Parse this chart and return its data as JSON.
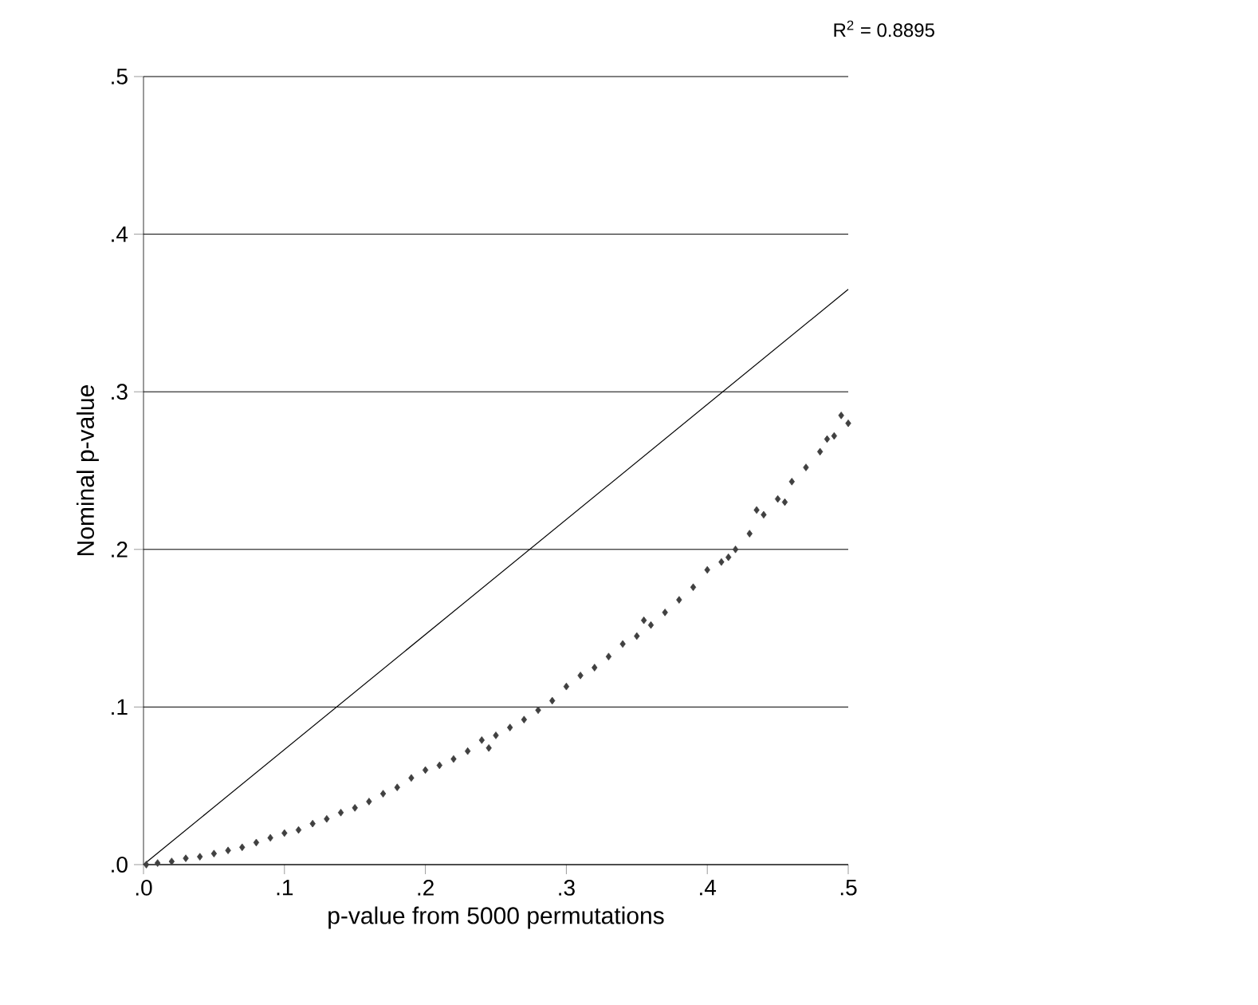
{
  "chart_data": {
    "type": "scatter",
    "xlabel": "p-value from 5000 permutations",
    "ylabel": "Nominal p-value",
    "annotations": [
      "R$^{2}$ = 0.8895"
    ],
    "xlim": [
      0,
      0.5
    ],
    "ylim": [
      0,
      0.5
    ],
    "xticks": [
      {
        "value": 0,
        "label": ".0"
      },
      {
        "value": 0.1,
        "label": ".1"
      },
      {
        "value": 0.2,
        "label": ".2"
      },
      {
        "value": 0.3,
        "label": ".3"
      },
      {
        "value": 0.4,
        "label": ".4"
      },
      {
        "value": 0.5,
        "label": ".5"
      }
    ],
    "yticks": [
      {
        "value": 0,
        "label": ".0"
      },
      {
        "value": 0.1,
        "label": ".1"
      },
      {
        "value": 0.2,
        "label": ".2"
      },
      {
        "value": 0.3,
        "label": ".3"
      },
      {
        "value": 0.4,
        "label": ".4"
      },
      {
        "value": 0.5,
        "label": ".5"
      }
    ],
    "grid": "y",
    "marker": "diamond",
    "series": [
      {
        "color": "#404040",
        "x": [
          0.002,
          0.01,
          0.02,
          0.03,
          0.04,
          0.05,
          0.06,
          0.07,
          0.08,
          0.09,
          0.1,
          0.11,
          0.12,
          0.13,
          0.14,
          0.15,
          0.16,
          0.17,
          0.18,
          0.19,
          0.2,
          0.21,
          0.22,
          0.23,
          0.24,
          0.245,
          0.25,
          0.26,
          0.27,
          0.28,
          0.29,
          0.3,
          0.31,
          0.32,
          0.33,
          0.34,
          0.35,
          0.355,
          0.36,
          0.37,
          0.38,
          0.39,
          0.4,
          0.41,
          0.415,
          0.42,
          0.43,
          0.435,
          0.44,
          0.45,
          0.455,
          0.46,
          0.47,
          0.48,
          0.485,
          0.49,
          0.495,
          0.5
        ],
        "values": [
          0.0,
          0.001,
          0.002,
          0.004,
          0.005,
          0.007,
          0.009,
          0.011,
          0.014,
          0.017,
          0.02,
          0.022,
          0.026,
          0.029,
          0.033,
          0.036,
          0.04,
          0.045,
          0.049,
          0.055,
          0.06,
          0.063,
          0.067,
          0.072,
          0.079,
          0.074,
          0.082,
          0.087,
          0.092,
          0.098,
          0.104,
          0.113,
          0.12,
          0.125,
          0.132,
          0.14,
          0.145,
          0.155,
          0.152,
          0.16,
          0.168,
          0.176,
          0.187,
          0.192,
          0.195,
          0.2,
          0.21,
          0.225,
          0.222,
          0.232,
          0.23,
          0.243,
          0.252,
          0.262,
          0.27,
          0.272,
          0.285,
          0.28
        ]
      },
      {
        "type": "line",
        "marker": "none",
        "color": "#000000",
        "x": [
          0,
          0.5
        ],
        "values": [
          0,
          0.365
        ]
      }
    ]
  }
}
